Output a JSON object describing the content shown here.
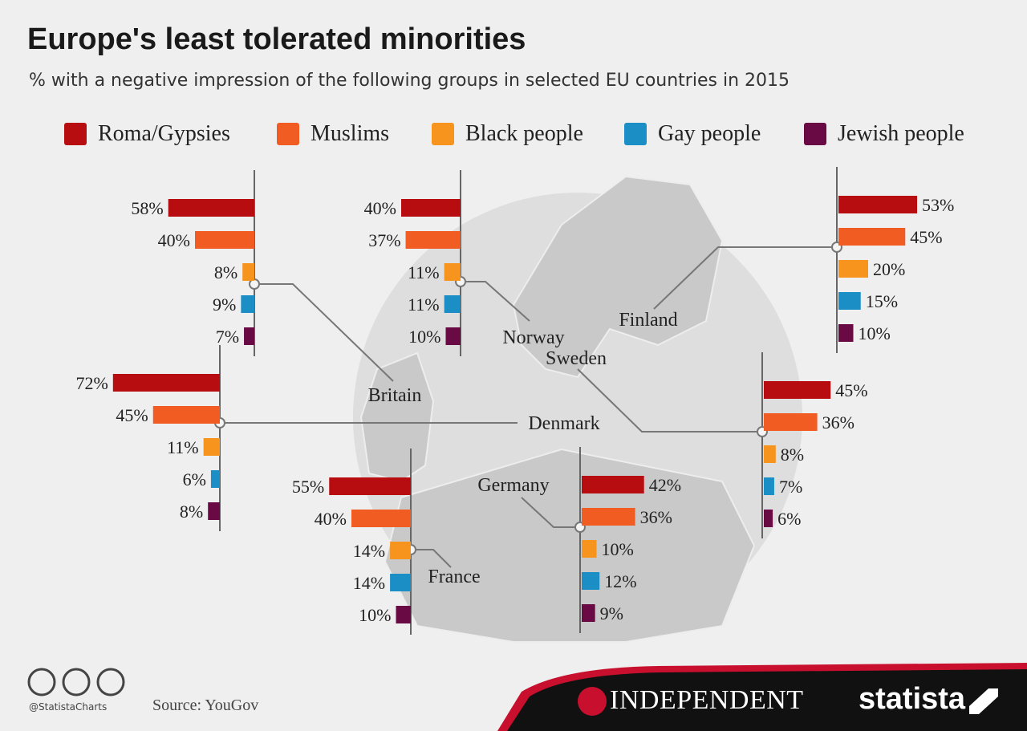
{
  "chart_data": {
    "type": "bar",
    "title": "Europe's least tolerated minorities",
    "subtitle": "% with a negative impression of the following groups in selected EU countries in 2015",
    "unit": "%",
    "legend_position": "top",
    "categories": [
      "Roma/Gypsies",
      "Muslims",
      "Black people",
      "Gay people",
      "Jewish people"
    ],
    "colors": [
      "#b80d10",
      "#f05c22",
      "#f7941d",
      "#1b8fc5",
      "#6a0a45"
    ],
    "series": [
      {
        "name": "Britain",
        "values": [
          58,
          40,
          8,
          9,
          7
        ]
      },
      {
        "name": "Norway",
        "values": [
          40,
          37,
          11,
          11,
          10
        ]
      },
      {
        "name": "Finland",
        "values": [
          53,
          45,
          20,
          15,
          10
        ]
      },
      {
        "name": "Denmark",
        "values": [
          72,
          45,
          11,
          6,
          8
        ]
      },
      {
        "name": "Sweden",
        "values": [
          45,
          36,
          8,
          7,
          6
        ]
      },
      {
        "name": "France",
        "values": [
          55,
          40,
          14,
          14,
          10
        ]
      },
      {
        "name": "Germany",
        "values": [
          42,
          36,
          10,
          12,
          9
        ]
      }
    ]
  },
  "footer": {
    "credit": "@StatistaCharts",
    "source": "Source: YouGov",
    "publisher": "INDEPENDENT",
    "brand": "statista"
  }
}
